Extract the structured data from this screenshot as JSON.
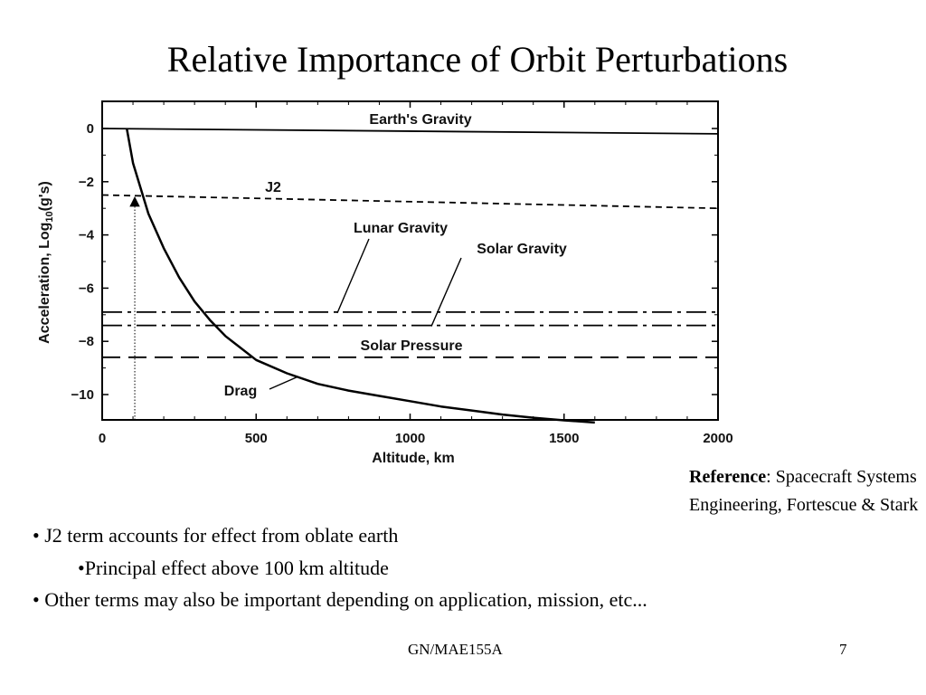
{
  "slide": {
    "title": "Relative Importance of Orbit Perturbations",
    "reference_label": "Reference",
    "reference_text": ": Spacecraft Systems Engineering, Fortescue & Stark",
    "bullets": [
      {
        "marker": "•",
        "text": "J2 term accounts for effect from oblate earth"
      },
      {
        "marker": "•",
        "text": "Principal effect above 100 km altitude"
      },
      {
        "marker": "•",
        "text": "Other terms may also be important depending on application, mission, etc..."
      }
    ],
    "footer_center": "GN/MAE155A",
    "page_number": "7"
  },
  "chart_data": {
    "type": "line",
    "title": "",
    "xlabel": "Altitude, km",
    "ylabel_prefix": "Acceleration, Log",
    "ylabel_subscript": "10",
    "ylabel_suffix": "(g's)",
    "xlim": [
      0,
      2000
    ],
    "ylim": [
      -11,
      1
    ],
    "x_ticks": [
      0,
      500,
      1000,
      1500,
      2000
    ],
    "y_ticks": [
      0,
      -2,
      -4,
      -6,
      -8,
      -10
    ],
    "x_tick_labels": [
      "0",
      "500",
      "1000",
      "1500",
      "2000"
    ],
    "y_tick_labels": [
      "0",
      "−2",
      "−4",
      "−6",
      "−8",
      "−10"
    ],
    "grid": false,
    "series": [
      {
        "name": "Earth's Gravity",
        "style": "solid",
        "x": [
          0,
          2000
        ],
        "y": [
          0,
          -0.2
        ]
      },
      {
        "name": "J2",
        "style": "dashed",
        "x": [
          0,
          2000
        ],
        "y": [
          -2.5,
          -3.0
        ]
      },
      {
        "name": "Lunar Gravity",
        "style": "dash-dot",
        "x": [
          0,
          2000
        ],
        "y": [
          -6.9,
          -6.9
        ]
      },
      {
        "name": "Solar Gravity",
        "style": "dash-dot",
        "x": [
          0,
          2000
        ],
        "y": [
          -7.4,
          -7.4
        ]
      },
      {
        "name": "Solar Pressure",
        "style": "long-dash",
        "x": [
          0,
          2000
        ],
        "y": [
          -8.6,
          -8.6
        ]
      },
      {
        "name": "Drag",
        "style": "solid",
        "x": [
          80,
          100,
          150,
          200,
          250,
          300,
          350,
          400,
          500,
          600,
          700,
          800,
          900,
          1000,
          1100,
          1200,
          1300,
          1400,
          1500,
          1600
        ],
        "y": [
          0,
          -1.3,
          -3.2,
          -4.5,
          -5.6,
          -6.5,
          -7.2,
          -7.8,
          -8.7,
          -9.2,
          -9.6,
          -9.85,
          -10.05,
          -10.25,
          -10.45,
          -10.6,
          -10.75,
          -10.87,
          -10.97,
          -11.05
        ]
      }
    ],
    "annotations": [
      {
        "text": "▲",
        "x": 100,
        "y": -2.6
      }
    ]
  }
}
